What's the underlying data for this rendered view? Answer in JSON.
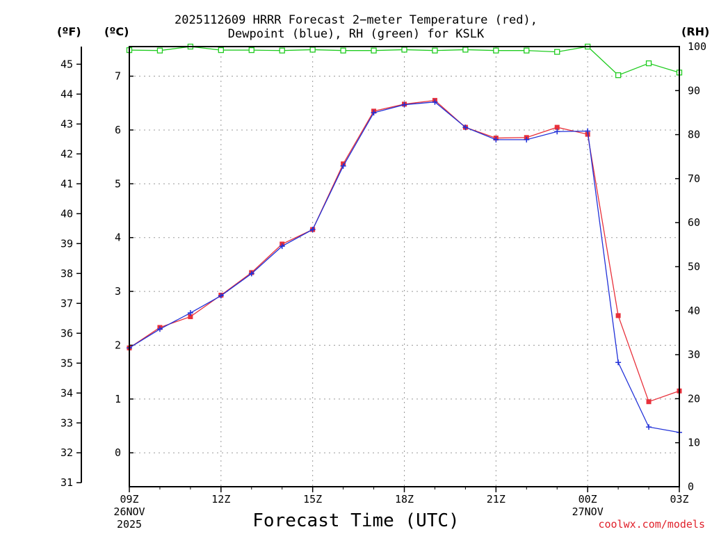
{
  "header": {
    "title_line1": "2025112609 HRRR Forecast 2−meter Temperature (red),",
    "title_line2": "Dewpoint (blue), RH (green) for KSLK"
  },
  "units": {
    "fahrenheit": "(ºF)",
    "celsius": "(ºC)",
    "rh": "(RH)"
  },
  "credit": "coolwx.com/models",
  "chart_data": {
    "type": "line",
    "title": "2025112609 HRRR Forecast 2-meter Temperature (red), Dewpoint (blue), RH (green) for KSLK",
    "xlabel": "Forecast Time (UTC)",
    "x_hours": [
      0,
      1,
      2,
      3,
      4,
      5,
      6,
      7,
      8,
      9,
      10,
      11,
      12,
      13,
      14,
      15,
      16,
      17,
      18
    ],
    "x_ticks": [
      {
        "hour": 0,
        "label": "09Z",
        "sub1": "26NOV",
        "sub2": "2025"
      },
      {
        "hour": 3,
        "label": "12Z",
        "sub1": "",
        "sub2": ""
      },
      {
        "hour": 6,
        "label": "15Z",
        "sub1": "",
        "sub2": ""
      },
      {
        "hour": 9,
        "label": "18Z",
        "sub1": "",
        "sub2": ""
      },
      {
        "hour": 12,
        "label": "21Z",
        "sub1": "",
        "sub2": ""
      },
      {
        "hour": 15,
        "label": "00Z",
        "sub1": "27NOV",
        "sub2": ""
      },
      {
        "hour": 18,
        "label": "03Z",
        "sub1": "",
        "sub2": ""
      }
    ],
    "xlim": [
      0,
      18
    ],
    "y_celsius": {
      "label": "(ºC)",
      "ylim": [
        -0.63,
        7.55
      ],
      "ticks": [
        "0",
        "1",
        "2",
        "3",
        "4",
        "5",
        "6",
        "7"
      ]
    },
    "y_fahrenheit": {
      "label": "(ºF)",
      "ticks": [
        "31",
        "32",
        "33",
        "34",
        "35",
        "36",
        "37",
        "38",
        "39",
        "40",
        "41",
        "42",
        "43",
        "44",
        "45"
      ]
    },
    "y_rh": {
      "label": "(RH)",
      "ylim": [
        0,
        100
      ],
      "ticks": [
        "0",
        "10",
        "20",
        "30",
        "40",
        "50",
        "60",
        "70",
        "80",
        "90",
        "100"
      ]
    },
    "grid": true,
    "series": [
      {
        "name": "Temperature",
        "color": "#e8303a",
        "marker": "square",
        "values": [
          1.95,
          2.33,
          2.53,
          2.93,
          3.35,
          3.88,
          4.15,
          5.37,
          6.35,
          6.48,
          6.55,
          6.05,
          5.85,
          5.86,
          6.05,
          5.92,
          2.55,
          0.95,
          1.15
        ]
      },
      {
        "name": "Dewpoint",
        "color": "#2030d8",
        "marker": "plus",
        "values": [
          1.95,
          2.3,
          2.6,
          2.92,
          3.33,
          3.84,
          4.15,
          5.33,
          6.32,
          6.47,
          6.52,
          6.05,
          5.82,
          5.82,
          5.97,
          5.98,
          1.68,
          0.48,
          0.38
        ]
      },
      {
        "name": "Relative Humidity",
        "color": "#20cc20",
        "marker": "open-square",
        "values": [
          99.2,
          99.1,
          100,
          99.2,
          99.2,
          99.1,
          99.3,
          99.1,
          99.1,
          99.3,
          99.1,
          99.3,
          99.1,
          99.1,
          98.8,
          100,
          93.5,
          96.2,
          94.1
        ]
      }
    ]
  }
}
